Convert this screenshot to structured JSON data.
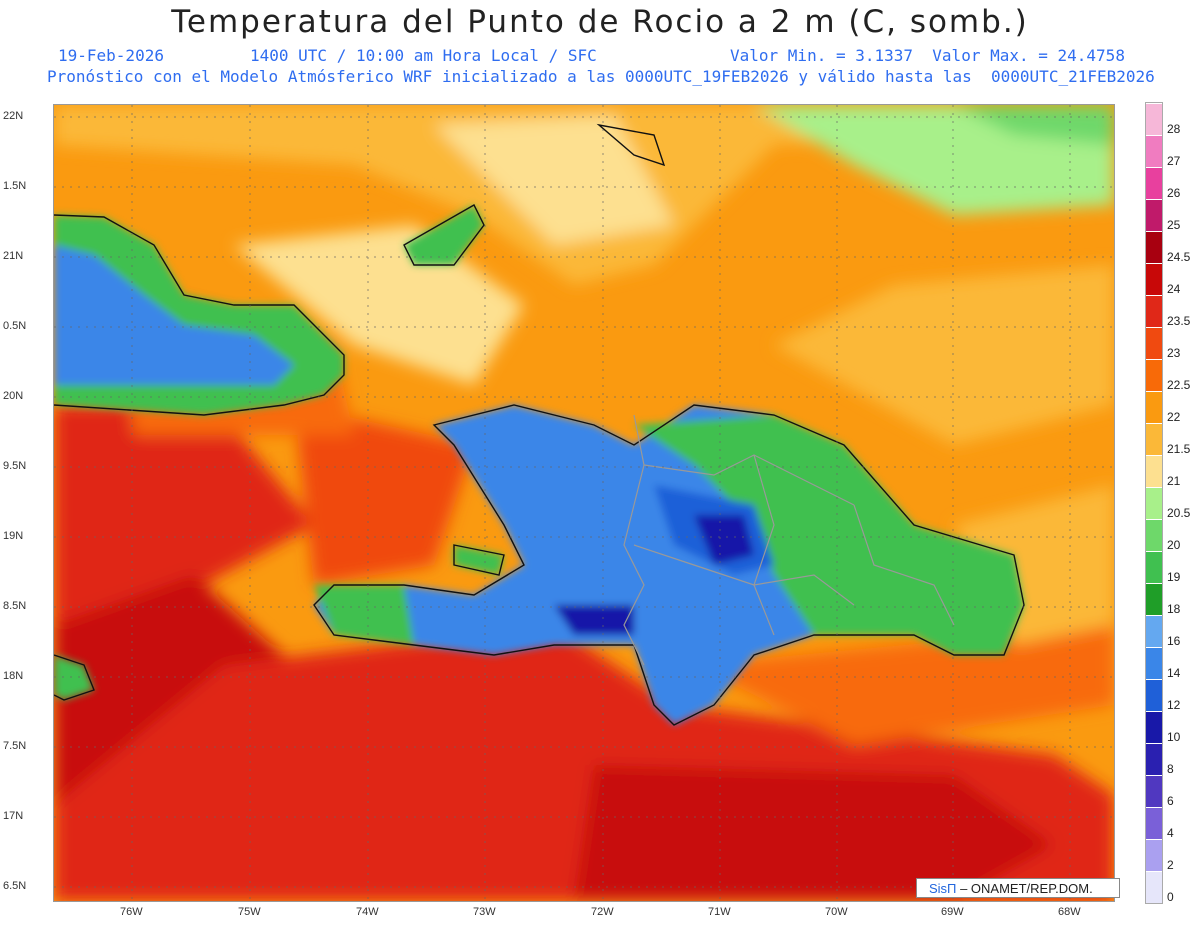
{
  "header": {
    "title": "Temperatura del Punto de Rocio a 2 m (C, somb.)",
    "date": "19-Feb-2026",
    "time": "1400 UTC / 10:00 am Hora Local / SFC",
    "minmax": "Valor Min. = 3.1337  Valor Max. = 24.4758",
    "model_line": "Pronóstico con el Modelo Atmósferico WRF inicializado a las 0000UTC_19FEB2026 y válido hasta las  0000UTC_21FEB2026"
  },
  "axes": {
    "lat_labels": [
      "22N",
      "1.5N",
      "21N",
      "0.5N",
      "20N",
      "9.5N",
      "19N",
      "8.5N",
      "18N",
      "7.5N",
      "17N",
      "6.5N"
    ],
    "lon_labels": [
      "76W",
      "75W",
      "74W",
      "73W",
      "72W",
      "71W",
      "70W",
      "69W",
      "68W"
    ]
  },
  "colorbar": {
    "labels": [
      "28",
      "27",
      "26",
      "25",
      "24.5",
      "24",
      "23.5",
      "23",
      "22.5",
      "22",
      "21.5",
      "21",
      "20.5",
      "20",
      "19",
      "18",
      "16",
      "14",
      "12",
      "10",
      "8",
      "6",
      "4",
      "2",
      "0"
    ],
    "colors": [
      "#f6b7d8",
      "#f07cc0",
      "#e8409e",
      "#c01a6a",
      "#a80010",
      "#c80808",
      "#e02818",
      "#f04a10",
      "#f86a08",
      "#fa9a10",
      "#fbb838",
      "#fde090",
      "#a8f08a",
      "#6ed86a",
      "#40c050",
      "#1f9e28",
      "#64a8f0",
      "#3a86e8",
      "#1f60d8",
      "#1818a8",
      "#2a20b0",
      "#5038c0",
      "#7a60d8",
      "#aaa0f0",
      "#e6e6fa"
    ]
  },
  "credit": {
    "brand": "SisΠ",
    "text": " – ONAMET/REP.DOM."
  }
}
